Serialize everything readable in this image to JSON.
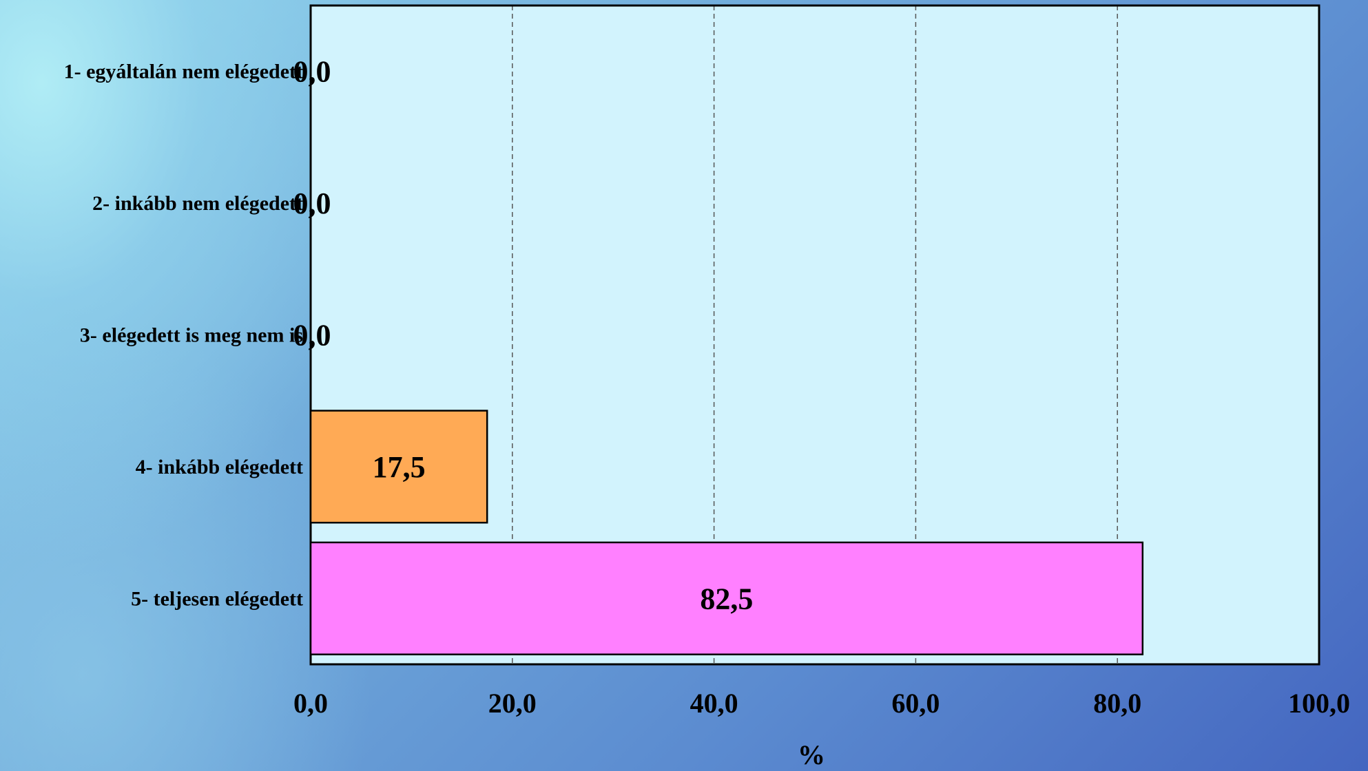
{
  "chart_data": {
    "type": "bar",
    "orientation": "horizontal",
    "categories": [
      "1- egyáltalán nem elégedett",
      "2- inkább nem elégedett",
      "3- elégedett is meg nem is",
      "4- inkább elégedett",
      "5- teljesen elégedett"
    ],
    "values": [
      0.0,
      0.0,
      0.0,
      17.5,
      82.5
    ],
    "value_labels": [
      "0,0",
      "0,0",
      "0,0",
      "17,5",
      "82,5"
    ],
    "bar_colors": [
      "#ffaa55",
      "#ffaa55",
      "#ffaa55",
      "#ffaa55",
      "#ff80ff"
    ],
    "xlim": [
      0,
      100
    ],
    "x_ticks": [
      0,
      20,
      40,
      60,
      80,
      100
    ],
    "x_tick_labels": [
      "0,0",
      "20,0",
      "40,0",
      "60,0",
      "80,0",
      "100,0"
    ],
    "xlabel": "%",
    "ylabel": "",
    "title": "",
    "grid": "vertical dashed",
    "legend": "none",
    "plot_background": "#d2f3fd"
  }
}
